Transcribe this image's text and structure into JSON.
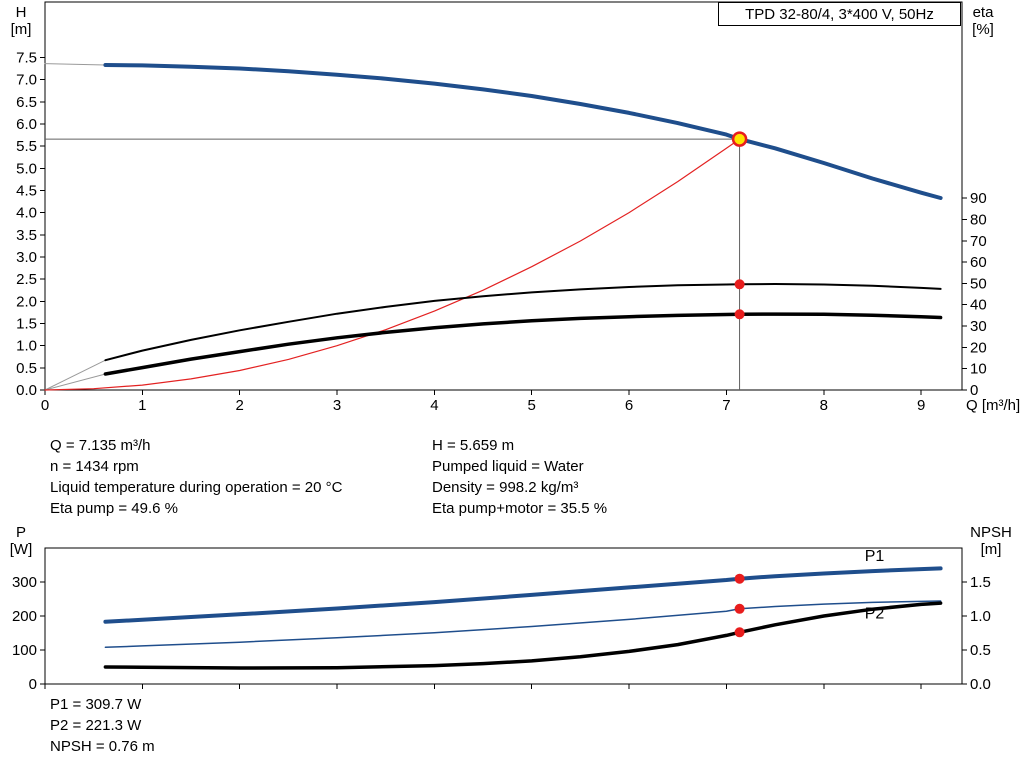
{
  "title_box": {
    "label": "TPD 32-80/4, 3*400 V, 50Hz"
  },
  "axis_labels": {
    "h_top": "H",
    "h_bottom": "[m]",
    "eta_top": "eta",
    "eta_bottom": "[%]",
    "q": "Q [m³/h]",
    "p_top": "P",
    "p_bottom": "[W]",
    "npsh_top": "NPSH",
    "npsh_bottom": "[m]"
  },
  "duty_info": {
    "left": [
      "Q = 7.135 m³/h",
      "n = 1434 rpm",
      "Liquid temperature during operation = 20 °C",
      "Eta pump = 49.6 %"
    ],
    "right": [
      "H = 5.659 m",
      "Pumped liquid = Water",
      "Density = 998.2 kg/m³",
      "Eta pump+motor = 35.5 %"
    ]
  },
  "footer": {
    "lines": [
      "P1 = 309.7 W",
      "P2 = 221.3 W",
      "NPSH = 0.76 m"
    ]
  },
  "colors": {
    "curve_blue": "#1f4e8c",
    "curve_red": "#e32222",
    "dot_red": "#e81d1d",
    "duty_yellow": "#ffe300",
    "guide_gray": "#606060",
    "lead_gray": "#9a9a9a"
  },
  "chart_data": [
    {
      "type": "line",
      "title": "TPD 32-80/4, 3*400 V, 50Hz",
      "xlabel": "Q [m³/h]",
      "ylabel_left": "H [m]",
      "ylabel_right": "eta [%]",
      "xlim": [
        0,
        9.42
      ],
      "ylim_left": [
        0,
        8.75
      ],
      "ylim_right": [
        0,
        182
      ],
      "grid": false,
      "legend": "none",
      "x_ticks": {
        "values": [
          0,
          1,
          2,
          3,
          4,
          5,
          6,
          7,
          8,
          9
        ],
        "labels": [
          "0",
          "1",
          "2",
          "3",
          "4",
          "5",
          "6",
          "7",
          "8",
          "9"
        ]
      },
      "y_ticks_left": {
        "values": [
          0,
          0.5,
          1,
          1.5,
          2,
          2.5,
          3,
          3.5,
          4,
          4.5,
          5,
          5.5,
          6,
          6.5,
          7,
          7.5
        ],
        "labels": [
          "0.0",
          "0.5",
          "1.0",
          "1.5",
          "2.0",
          "2.5",
          "3.0",
          "3.5",
          "4.0",
          "4.5",
          "5.0",
          "5.5",
          "6.0",
          "6.5",
          "7.0",
          "7.5"
        ]
      },
      "y_ticks_right": {
        "values": [
          0,
          10,
          20,
          30,
          40,
          50,
          60,
          70,
          80,
          90
        ],
        "labels": [
          "0",
          "10",
          "20",
          "30",
          "40",
          "50",
          "60",
          "70",
          "80",
          "90"
        ]
      },
      "guides": {
        "q": 7.135,
        "h": 5.659,
        "color": "#606060"
      },
      "series": [
        {
          "name": "head-lead-in",
          "axis": "left",
          "color": "#9a9a9a",
          "width": 1,
          "points": [
            [
              0,
              7.36
            ],
            [
              0.62,
              7.33
            ]
          ]
        },
        {
          "name": "eta-pump-lead-in",
          "axis": "right",
          "color": "#9a9a9a",
          "width": 1,
          "points": [
            [
              0,
              0
            ],
            [
              0.62,
              14
            ]
          ]
        },
        {
          "name": "eta-pump-motor-lead-in",
          "axis": "right",
          "color": "#9a9a9a",
          "width": 1,
          "points": [
            [
              0,
              0
            ],
            [
              0.62,
              7.5
            ]
          ]
        },
        {
          "name": "system-curve",
          "axis": "left",
          "color": "#e32222",
          "width": 1.2,
          "points": [
            [
              0,
              0
            ],
            [
              0.5,
              0.03
            ],
            [
              1,
              0.11
            ],
            [
              1.5,
              0.25
            ],
            [
              2,
              0.44
            ],
            [
              2.5,
              0.69
            ],
            [
              3,
              1.0
            ],
            [
              3.5,
              1.36
            ],
            [
              4,
              1.78
            ],
            [
              4.5,
              2.25
            ],
            [
              5,
              2.78
            ],
            [
              5.5,
              3.36
            ],
            [
              6,
              4.0
            ],
            [
              6.5,
              4.7
            ],
            [
              7,
              5.45
            ],
            [
              7.135,
              5.659
            ]
          ]
        },
        {
          "name": "eta-pump-curve",
          "axis": "right",
          "color": "#000000",
          "width": 2,
          "points": [
            [
              0.62,
              14
            ],
            [
              1,
              18.5
            ],
            [
              1.5,
              23.5
            ],
            [
              2,
              28
            ],
            [
              2.5,
              32
            ],
            [
              3,
              35.8
            ],
            [
              3.5,
              39
            ],
            [
              4,
              41.8
            ],
            [
              4.5,
              44
            ],
            [
              5,
              45.8
            ],
            [
              5.5,
              47.2
            ],
            [
              6,
              48.3
            ],
            [
              6.5,
              49.1
            ],
            [
              7,
              49.5
            ],
            [
              7.135,
              49.6
            ],
            [
              7.5,
              49.7
            ],
            [
              8,
              49.5
            ],
            [
              8.5,
              48.9
            ],
            [
              9,
              47.9
            ],
            [
              9.2,
              47.4
            ]
          ]
        },
        {
          "name": "eta-pump-motor-curve",
          "axis": "right",
          "color": "#000000",
          "width": 3.5,
          "points": [
            [
              0.62,
              7.5
            ],
            [
              1,
              10.5
            ],
            [
              1.5,
              14.5
            ],
            [
              2,
              18
            ],
            [
              2.5,
              21.5
            ],
            [
              3,
              24.5
            ],
            [
              3.5,
              27
            ],
            [
              4,
              29.2
            ],
            [
              4.5,
              31
            ],
            [
              5,
              32.5
            ],
            [
              5.5,
              33.6
            ],
            [
              6,
              34.4
            ],
            [
              6.5,
              35
            ],
            [
              7,
              35.4
            ],
            [
              7.135,
              35.5
            ],
            [
              7.5,
              35.6
            ],
            [
              8,
              35.5
            ],
            [
              8.5,
              35.1
            ],
            [
              9,
              34.4
            ],
            [
              9.2,
              34
            ]
          ]
        },
        {
          "name": "head-curve",
          "axis": "left",
          "color": "#1f4e8c",
          "width": 4,
          "points": [
            [
              0.62,
              7.33
            ],
            [
              1,
              7.32
            ],
            [
              1.5,
              7.29
            ],
            [
              2,
              7.25
            ],
            [
              2.5,
              7.19
            ],
            [
              3,
              7.11
            ],
            [
              3.5,
              7.02
            ],
            [
              4,
              6.91
            ],
            [
              4.5,
              6.78
            ],
            [
              5,
              6.63
            ],
            [
              5.5,
              6.45
            ],
            [
              6,
              6.25
            ],
            [
              6.5,
              6.02
            ],
            [
              7,
              5.76
            ],
            [
              7.135,
              5.659
            ],
            [
              7.5,
              5.45
            ],
            [
              8,
              5.12
            ],
            [
              8.5,
              4.77
            ],
            [
              9,
              4.45
            ],
            [
              9.2,
              4.33
            ]
          ]
        }
      ],
      "markers": [
        {
          "name": "duty-point",
          "axis": "left",
          "x": 7.135,
          "y": 5.659,
          "r": 6.5,
          "fill": "#ffe300",
          "stroke": "#e81d1d",
          "stroke_width": 2.5
        },
        {
          "name": "eta-pump-point",
          "axis": "right",
          "x": 7.135,
          "y": 49.6,
          "r": 5,
          "fill": "#e81d1d"
        },
        {
          "name": "eta-pump-motor-point",
          "axis": "right",
          "x": 7.135,
          "y": 35.5,
          "r": 5,
          "fill": "#e81d1d"
        }
      ],
      "annotations": []
    },
    {
      "type": "line",
      "title": "",
      "xlabel": "",
      "ylabel_left": "P [W]",
      "ylabel_right": "NPSH [m]",
      "xlim": [
        0,
        9.42
      ],
      "ylim_left": [
        0,
        400
      ],
      "ylim_right": [
        0,
        2
      ],
      "grid": false,
      "legend": "none",
      "x_ticks": {
        "values": [
          0,
          1,
          2,
          3,
          4,
          5,
          6,
          7,
          8,
          9
        ],
        "labels": []
      },
      "y_ticks_left": {
        "values": [
          0,
          100,
          200,
          300
        ],
        "labels": [
          "0",
          "100",
          "200",
          "300"
        ]
      },
      "y_ticks_right": {
        "values": [
          0,
          0.5,
          1,
          1.5
        ],
        "labels": [
          "0.0",
          "0.5",
          "1.0",
          "1.5"
        ]
      },
      "guides": null,
      "series": [
        {
          "name": "p2-curve",
          "axis": "left",
          "color": "#1f4e8c",
          "width": 1.5,
          "points": [
            [
              0.62,
              108
            ],
            [
              1,
              112
            ],
            [
              2,
              123
            ],
            [
              3,
              136
            ],
            [
              4,
              151
            ],
            [
              5,
              169
            ],
            [
              6,
              190
            ],
            [
              7,
              214
            ],
            [
              7.135,
              221.3
            ],
            [
              7.5,
              228
            ],
            [
              8,
              235
            ],
            [
              8.5,
              240
            ],
            [
              9,
              243
            ],
            [
              9.2,
              244
            ]
          ]
        },
        {
          "name": "p1-curve",
          "axis": "left",
          "color": "#1f4e8c",
          "width": 4,
          "points": [
            [
              0.62,
              183
            ],
            [
              1,
              189
            ],
            [
              2,
              205
            ],
            [
              3,
              222
            ],
            [
              4,
              241
            ],
            [
              5,
              262
            ],
            [
              6,
              284
            ],
            [
              7,
              306
            ],
            [
              7.135,
              309.7
            ],
            [
              7.5,
              317
            ],
            [
              8,
              325
            ],
            [
              8.5,
              332
            ],
            [
              9,
              338
            ],
            [
              9.2,
              340
            ]
          ]
        },
        {
          "name": "npsh-curve",
          "axis": "right",
          "color": "#000000",
          "width": 3.5,
          "points": [
            [
              0.62,
              0.25
            ],
            [
              1,
              0.245
            ],
            [
              2,
              0.235
            ],
            [
              3,
              0.24
            ],
            [
              4,
              0.27
            ],
            [
              4.5,
              0.3
            ],
            [
              5,
              0.34
            ],
            [
              5.5,
              0.4
            ],
            [
              6,
              0.48
            ],
            [
              6.5,
              0.58
            ],
            [
              7,
              0.715
            ],
            [
              7.135,
              0.76
            ],
            [
              7.5,
              0.87
            ],
            [
              8,
              1.0
            ],
            [
              8.5,
              1.1
            ],
            [
              9,
              1.17
            ],
            [
              9.2,
              1.19
            ]
          ]
        }
      ],
      "markers": [
        {
          "name": "p1-point",
          "axis": "left",
          "x": 7.135,
          "y": 309.7,
          "r": 5,
          "fill": "#e81d1d"
        },
        {
          "name": "p2-point",
          "axis": "left",
          "x": 7.135,
          "y": 221.3,
          "r": 5,
          "fill": "#e81d1d"
        },
        {
          "name": "npsh-point",
          "axis": "right",
          "x": 7.135,
          "y": 0.76,
          "r": 5,
          "fill": "#e81d1d"
        }
      ],
      "annotations": [
        {
          "name": "p1-label",
          "text": "P1",
          "axis": "left",
          "x": 8.42,
          "y": 362,
          "color": "#1f4e8c"
        },
        {
          "name": "p2-label",
          "text": "P2",
          "axis": "left",
          "x": 8.42,
          "y": 192,
          "color": "#1f4e8c"
        }
      ]
    }
  ]
}
